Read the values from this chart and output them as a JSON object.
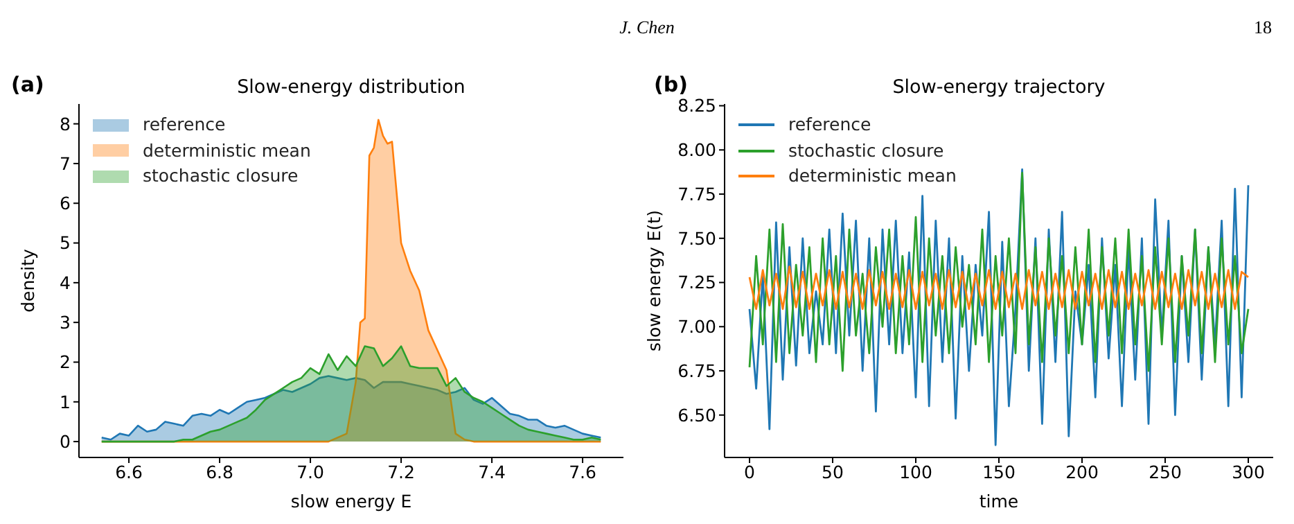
{
  "chart_data": [
    {
      "type": "area",
      "title": "Slow-energy distribution",
      "xlabel": "slow energy E",
      "ylabel": "density",
      "annotations": [
        "J. Chen",
        "18",
        "(a)"
      ],
      "x": [
        6.54,
        6.56,
        6.58,
        6.6,
        6.62,
        6.64,
        6.66,
        6.68,
        6.7,
        6.72,
        6.74,
        6.76,
        6.78,
        6.8,
        6.82,
        6.84,
        6.86,
        6.88,
        6.9,
        6.92,
        6.94,
        6.96,
        6.98,
        7.0,
        7.02,
        7.04,
        7.06,
        7.08,
        7.1,
        7.12,
        7.14,
        7.16,
        7.18,
        7.2,
        7.22,
        7.24,
        7.26,
        7.28,
        7.3,
        7.32,
        7.34,
        7.36,
        7.38,
        7.4,
        7.42,
        7.44,
        7.46,
        7.48,
        7.5,
        7.52,
        7.54,
        7.56,
        7.58,
        7.6,
        7.62,
        7.64
      ],
      "series": [
        {
          "name": "reference",
          "color": "#1f77b4",
          "values": [
            0.1,
            0.05,
            0.2,
            0.15,
            0.4,
            0.25,
            0.3,
            0.5,
            0.45,
            0.4,
            0.65,
            0.7,
            0.65,
            0.8,
            0.7,
            0.85,
            1.0,
            1.05,
            1.1,
            1.2,
            1.3,
            1.25,
            1.35,
            1.45,
            1.6,
            1.65,
            1.6,
            1.55,
            1.6,
            1.55,
            1.35,
            1.5,
            1.5,
            1.5,
            1.45,
            1.4,
            1.35,
            1.3,
            1.2,
            1.25,
            1.35,
            1.05,
            0.95,
            1.1,
            0.9,
            0.7,
            0.65,
            0.55,
            0.55,
            0.4,
            0.35,
            0.4,
            0.3,
            0.2,
            0.15,
            0.1
          ]
        },
        {
          "name": "deterministic mean",
          "color": "#ff7f0e",
          "x": [
            6.54,
            6.7,
            6.9,
            7.04,
            7.06,
            7.08,
            7.1,
            7.11,
            7.12,
            7.13,
            7.14,
            7.15,
            7.16,
            7.17,
            7.18,
            7.2,
            7.22,
            7.24,
            7.26,
            7.28,
            7.3,
            7.32,
            7.34,
            7.36,
            7.5,
            7.64
          ],
          "values": [
            0,
            0,
            0,
            0,
            0.1,
            0.2,
            1.5,
            3.0,
            3.1,
            7.2,
            7.4,
            8.1,
            7.7,
            7.5,
            7.55,
            5.0,
            4.3,
            3.8,
            2.8,
            2.3,
            1.8,
            0.2,
            0.05,
            0,
            0,
            0
          ]
        },
        {
          "name": "stochastic closure",
          "color": "#2ca02c",
          "values": [
            0,
            0,
            0,
            0,
            0,
            0,
            0,
            0,
            0,
            0.05,
            0.05,
            0.15,
            0.25,
            0.3,
            0.4,
            0.5,
            0.6,
            0.8,
            1.05,
            1.2,
            1.35,
            1.5,
            1.6,
            1.85,
            1.7,
            2.2,
            1.8,
            2.15,
            1.9,
            2.4,
            2.35,
            1.9,
            2.1,
            2.4,
            1.9,
            1.85,
            1.85,
            1.85,
            1.4,
            1.6,
            1.25,
            1.1,
            1.0,
            0.85,
            0.7,
            0.55,
            0.4,
            0.3,
            0.25,
            0.2,
            0.15,
            0.1,
            0.05,
            0.05,
            0.1,
            0.05
          ]
        }
      ],
      "xlim": [
        6.49,
        7.69
      ],
      "xticks": [
        {
          "value": 6.6,
          "label": "6.6"
        },
        {
          "value": 6.8,
          "label": "6.8"
        },
        {
          "value": 7.0,
          "label": "7.0"
        },
        {
          "value": 7.2,
          "label": "7.2"
        },
        {
          "value": 7.4,
          "label": "7.4"
        },
        {
          "value": 7.6,
          "label": "7.6"
        }
      ],
      "ylim": [
        -0.4,
        8.5
      ],
      "yticks": [
        0,
        1,
        2,
        3,
        4,
        5,
        6,
        7,
        8
      ],
      "legend": "top left"
    },
    {
      "type": "line",
      "title": "Slow-energy trajectory",
      "xlabel": "time",
      "ylabel": "slow energy E(t)",
      "annotations": [
        "(b)"
      ],
      "x": [
        0,
        4,
        8,
        12,
        16,
        20,
        24,
        28,
        32,
        36,
        40,
        44,
        48,
        52,
        56,
        60,
        64,
        68,
        72,
        76,
        80,
        84,
        88,
        92,
        96,
        100,
        104,
        108,
        112,
        116,
        120,
        124,
        128,
        132,
        136,
        140,
        144,
        148,
        152,
        156,
        160,
        164,
        168,
        172,
        176,
        180,
        184,
        188,
        192,
        196,
        200,
        204,
        208,
        212,
        216,
        220,
        224,
        228,
        232,
        236,
        240,
        244,
        248,
        252,
        256,
        260,
        264,
        268,
        272,
        276,
        280,
        284,
        288,
        292,
        296,
        300
      ],
      "series": [
        {
          "name": "reference",
          "color": "#1f77b4",
          "values": [
            7.1,
            6.65,
            7.3,
            6.42,
            7.59,
            6.7,
            7.45,
            6.78,
            7.5,
            6.85,
            7.2,
            6.9,
            7.55,
            6.85,
            7.64,
            6.95,
            7.6,
            6.75,
            7.5,
            6.52,
            7.55,
            6.9,
            7.6,
            6.85,
            7.42,
            6.6,
            7.74,
            6.55,
            7.6,
            6.8,
            7.5,
            6.48,
            7.4,
            6.75,
            7.35,
            6.95,
            7.65,
            6.33,
            7.48,
            6.55,
            7.1,
            7.89,
            6.75,
            7.5,
            6.45,
            7.55,
            6.8,
            7.65,
            6.38,
            7.2,
            6.9,
            7.35,
            6.6,
            7.5,
            6.82,
            7.35,
            6.55,
            7.45,
            6.7,
            7.5,
            6.45,
            7.72,
            6.95,
            7.6,
            6.5,
            7.4,
            6.8,
            7.55,
            6.7,
            7.45,
            6.9,
            7.6,
            6.55,
            7.78,
            6.6,
            7.8
          ]
        },
        {
          "name": "stochastic closure",
          "color": "#2ca02c",
          "values": [
            6.77,
            7.4,
            6.9,
            7.55,
            6.8,
            7.58,
            6.85,
            7.35,
            6.95,
            7.45,
            6.8,
            7.5,
            6.9,
            7.4,
            6.75,
            7.55,
            6.95,
            7.3,
            6.85,
            7.45,
            7.0,
            7.55,
            6.85,
            7.4,
            6.9,
            7.62,
            6.8,
            7.5,
            6.95,
            7.4,
            6.85,
            7.45,
            7.0,
            7.35,
            6.9,
            7.55,
            6.8,
            7.4,
            6.95,
            7.5,
            6.85,
            7.87,
            6.9,
            7.45,
            6.8,
            7.5,
            6.95,
            7.4,
            6.85,
            7.45,
            6.9,
            7.55,
            6.8,
            7.45,
            6.95,
            7.5,
            6.85,
            7.55,
            6.9,
            7.4,
            6.75,
            7.45,
            6.9,
            7.5,
            6.8,
            7.4,
            6.95,
            7.55,
            6.85,
            7.45,
            6.8,
            7.5,
            6.9,
            7.4,
            6.85,
            7.1
          ]
        },
        {
          "name": "deterministic mean",
          "color": "#ff7f0e",
          "values": [
            7.28,
            7.1,
            7.32,
            7.12,
            7.3,
            7.1,
            7.34,
            7.11,
            7.31,
            7.1,
            7.3,
            7.12,
            7.32,
            7.1,
            7.31,
            7.11,
            7.3,
            7.1,
            7.32,
            7.12,
            7.31,
            7.1,
            7.3,
            7.11,
            7.32,
            7.1,
            7.31,
            7.12,
            7.3,
            7.1,
            7.32,
            7.11,
            7.31,
            7.1,
            7.3,
            7.12,
            7.32,
            7.1,
            7.31,
            7.11,
            7.3,
            7.1,
            7.32,
            7.12,
            7.31,
            7.1,
            7.3,
            7.11,
            7.32,
            7.1,
            7.31,
            7.12,
            7.3,
            7.1,
            7.32,
            7.11,
            7.31,
            7.1,
            7.3,
            7.12,
            7.32,
            7.1,
            7.31,
            7.11,
            7.3,
            7.1,
            7.32,
            7.12,
            7.31,
            7.1,
            7.3,
            7.11,
            7.32,
            7.1,
            7.31,
            7.28
          ]
        }
      ],
      "xlim": [
        -15,
        315
      ],
      "xticks": [
        0,
        50,
        100,
        150,
        200,
        250,
        300
      ],
      "ylim": [
        6.26,
        8.26
      ],
      "yticks": [
        {
          "value": 6.5,
          "label": "6.50"
        },
        {
          "value": 6.75,
          "label": "6.75"
        },
        {
          "value": 7.0,
          "label": "7.00"
        },
        {
          "value": 7.25,
          "label": "7.25"
        },
        {
          "value": 7.5,
          "label": "7.50"
        },
        {
          "value": 7.75,
          "label": "7.75"
        },
        {
          "value": 8.0,
          "label": "8.00"
        },
        {
          "value": 8.25,
          "label": "8.25"
        }
      ],
      "legend": "top left"
    }
  ]
}
